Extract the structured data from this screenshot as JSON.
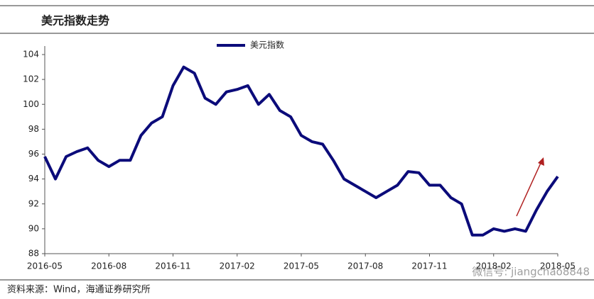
{
  "header": {
    "title": "美元指数走势"
  },
  "chart_data": {
    "type": "line",
    "categories": [
      "2016-05",
      null,
      null,
      null,
      null,
      null,
      "2016-08",
      null,
      null,
      null,
      null,
      null,
      "2016-11",
      null,
      null,
      null,
      null,
      null,
      "2017-02",
      null,
      null,
      null,
      null,
      null,
      "2017-05",
      null,
      null,
      null,
      null,
      null,
      "2017-08",
      null,
      null,
      null,
      null,
      null,
      "2017-11",
      null,
      null,
      null,
      null,
      null,
      "2018-02",
      null,
      null,
      null,
      null,
      null,
      "2018-05"
    ],
    "series": [
      {
        "name": "美元指数",
        "color": "#0b0b7a",
        "values": [
          95.8,
          94.0,
          95.8,
          96.2,
          96.5,
          95.5,
          95.0,
          95.5,
          95.5,
          97.5,
          98.5,
          99.0,
          101.5,
          103.0,
          102.5,
          100.5,
          100.0,
          101.0,
          101.2,
          101.5,
          100.0,
          100.8,
          99.5,
          99.0,
          97.5,
          97.0,
          96.8,
          95.5,
          94.0,
          93.5,
          93.0,
          92.5,
          93.0,
          93.5,
          94.6,
          94.5,
          93.5,
          93.5,
          92.5,
          92.0,
          89.5,
          89.5,
          90.0,
          89.8,
          90.0,
          89.8,
          91.5,
          93.0,
          94.2
        ]
      }
    ],
    "ylim": [
      88,
      104
    ],
    "yticks": [
      88,
      90,
      92,
      94,
      96,
      98,
      100,
      102,
      104
    ],
    "grid": false
  },
  "footer": {
    "source": "资料来源：Wind，海通证券研究所",
    "watermark": "微信号: jiangchao8848"
  }
}
